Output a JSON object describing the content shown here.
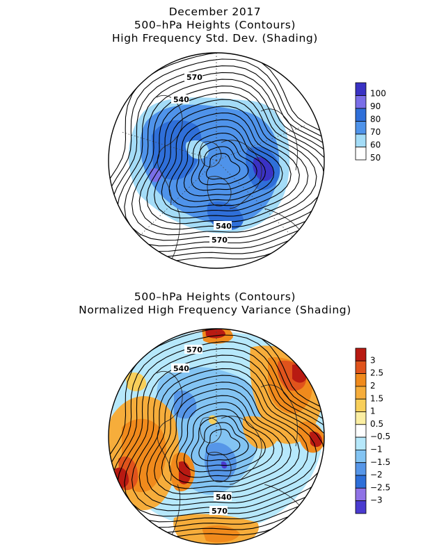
{
  "top_panel": {
    "title_line1": "December 2017",
    "title_line2": "500–hPa Heights (Contours)",
    "title_line3": "High Frequency Std. Dev. (Shading)",
    "contour_labels": [
      "570",
      "540",
      "540",
      "570"
    ],
    "colorbar": {
      "labels": [
        "100",
        "90",
        "80",
        "70",
        "60",
        "50"
      ],
      "colors": [
        "#3a32c4",
        "#7a6ee8",
        "#2f6fd9",
        "#4f93ea",
        "#a4dcf7",
        "#ffffff"
      ]
    }
  },
  "bottom_panel": {
    "title_line1": "500–hPa Heights (Contours)",
    "title_line2": "Normalized High Frequency Variance (Shading)",
    "contour_labels": [
      "570",
      "540",
      "540",
      "570"
    ],
    "colorbar": {
      "labels": [
        "3",
        "2.5",
        "2",
        "1.5",
        "1",
        "0.5",
        "−0.5",
        "−1",
        "−1.5",
        "−2",
        "−2.5",
        "−3"
      ],
      "colors": [
        "#b81a12",
        "#e0531c",
        "#f08a1c",
        "#f6ad3b",
        "#f8cf5a",
        "#fbeea2",
        "#ffffff",
        "#b6e8fb",
        "#83c4f3",
        "#5696e8",
        "#2d6fd9",
        "#8f72e6",
        "#4a3bd0"
      ]
    }
  }
}
